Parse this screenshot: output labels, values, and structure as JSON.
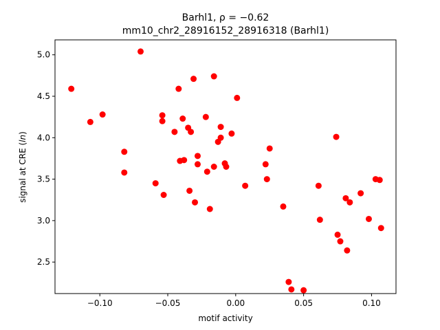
{
  "chart_data": {
    "type": "scatter",
    "title_prefix": "Barhl1, ",
    "title_rho": "ρ = −0.62",
    "subtitle": "mm10_chr2_28916152_28916318 (Barhl1)",
    "xlabel": "motif activity",
    "ylabel_main": "signal at CRE (",
    "ylabel_italic": "ln",
    "ylabel_end": ")",
    "xlim": [
      -0.133,
      0.118
    ],
    "ylim": [
      2.12,
      5.18
    ],
    "xticks": [
      -0.1,
      -0.05,
      0.0,
      0.05,
      0.1
    ],
    "xtick_labels": [
      "−0.10",
      "−0.05",
      "0.00",
      "0.05",
      "0.10"
    ],
    "yticks": [
      2.5,
      3.0,
      3.5,
      4.0,
      4.5,
      5.0
    ],
    "ytick_labels": [
      "2.5",
      "3.0",
      "3.5",
      "4.0",
      "4.5",
      "5.0"
    ],
    "marker_color": "#ff0000",
    "grid": false,
    "points": [
      {
        "x": -0.121,
        "y": 4.59
      },
      {
        "x": -0.107,
        "y": 4.19
      },
      {
        "x": -0.098,
        "y": 4.28
      },
      {
        "x": -0.082,
        "y": 3.83
      },
      {
        "x": -0.082,
        "y": 3.58
      },
      {
        "x": -0.07,
        "y": 5.04
      },
      {
        "x": -0.059,
        "y": 3.45
      },
      {
        "x": -0.054,
        "y": 4.27
      },
      {
        "x": -0.054,
        "y": 4.2
      },
      {
        "x": -0.053,
        "y": 3.31
      },
      {
        "x": -0.045,
        "y": 4.07
      },
      {
        "x": -0.042,
        "y": 4.59
      },
      {
        "x": -0.041,
        "y": 3.72
      },
      {
        "x": -0.039,
        "y": 4.23
      },
      {
        "x": -0.038,
        "y": 3.73
      },
      {
        "x": -0.035,
        "y": 4.12
      },
      {
        "x": -0.034,
        "y": 3.36
      },
      {
        "x": -0.033,
        "y": 4.07
      },
      {
        "x": -0.031,
        "y": 4.71
      },
      {
        "x": -0.03,
        "y": 3.22
      },
      {
        "x": -0.028,
        "y": 3.78
      },
      {
        "x": -0.028,
        "y": 3.68
      },
      {
        "x": -0.022,
        "y": 4.25
      },
      {
        "x": -0.021,
        "y": 3.59
      },
      {
        "x": -0.019,
        "y": 3.14
      },
      {
        "x": -0.016,
        "y": 4.74
      },
      {
        "x": -0.016,
        "y": 3.65
      },
      {
        "x": -0.013,
        "y": 3.95
      },
      {
        "x": -0.011,
        "y": 4.0
      },
      {
        "x": -0.011,
        "y": 4.13
      },
      {
        "x": -0.008,
        "y": 3.69
      },
      {
        "x": -0.007,
        "y": 3.65
      },
      {
        "x": -0.003,
        "y": 4.05
      },
      {
        "x": 0.001,
        "y": 4.48
      },
      {
        "x": 0.007,
        "y": 3.42
      },
      {
        "x": 0.022,
        "y": 3.68
      },
      {
        "x": 0.023,
        "y": 3.5
      },
      {
        "x": 0.025,
        "y": 3.87
      },
      {
        "x": 0.035,
        "y": 3.17
      },
      {
        "x": 0.039,
        "y": 2.26
      },
      {
        "x": 0.041,
        "y": 2.17
      },
      {
        "x": 0.05,
        "y": 2.16
      },
      {
        "x": 0.061,
        "y": 3.42
      },
      {
        "x": 0.062,
        "y": 3.01
      },
      {
        "x": 0.074,
        "y": 4.01
      },
      {
        "x": 0.075,
        "y": 2.83
      },
      {
        "x": 0.077,
        "y": 2.75
      },
      {
        "x": 0.081,
        "y": 3.27
      },
      {
        "x": 0.082,
        "y": 2.64
      },
      {
        "x": 0.084,
        "y": 3.22
      },
      {
        "x": 0.092,
        "y": 3.33
      },
      {
        "x": 0.098,
        "y": 3.02
      },
      {
        "x": 0.103,
        "y": 3.5
      },
      {
        "x": 0.106,
        "y": 3.49
      },
      {
        "x": 0.107,
        "y": 2.91
      }
    ]
  }
}
